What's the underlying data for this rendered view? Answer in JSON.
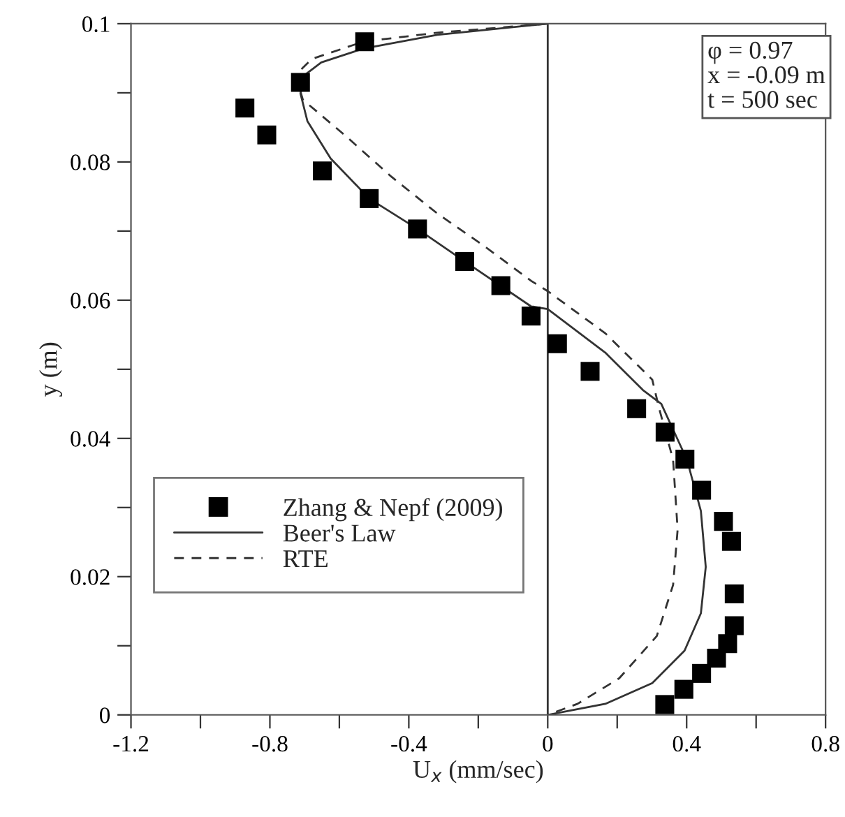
{
  "chart_data": {
    "type": "scatter",
    "xlabel": "U$_{x}$ (mm/sec)",
    "ylabel": "y (m)",
    "xlim": [
      -1.2,
      0.8
    ],
    "xticks": [
      -1.2,
      {
        "value": -1.0,
        "label": null
      },
      -0.8,
      {
        "value": -0.6,
        "label": null
      },
      -0.4,
      {
        "value": -0.2,
        "label": null
      },
      0,
      {
        "value": 0.2,
        "label": null
      },
      0.4,
      {
        "value": 0.6,
        "label": null
      },
      0.8
    ],
    "ylim": [
      0,
      0.1
    ],
    "yticks": [
      0,
      {
        "value": 0.01,
        "label": null
      },
      0.02,
      {
        "value": 0.03,
        "label": null
      },
      0.04,
      {
        "value": 0.05,
        "label": null
      },
      0.06,
      {
        "value": 0.07,
        "label": null
      },
      0.08,
      {
        "value": 0.09,
        "label": null
      },
      0.1
    ],
    "grid": false,
    "legend": "left",
    "annotations": [
      "φ = 0.97\nx = -0.09 m\nt = 500 sec"
    ],
    "ref_lines": [
      {
        "axis": "x",
        "value": 0,
        "label": null,
        "color": "#333333",
        "line_style": "solid"
      }
    ],
    "series": [
      {
        "name": "Zhang & Nepf (2009)",
        "marker": "square",
        "color": "#000000",
        "x": [
          -0.527,
          -0.712,
          -0.872,
          -0.809,
          -0.649,
          -0.514,
          -0.375,
          -0.239,
          -0.135,
          -0.048,
          0.028,
          0.122,
          0.256,
          0.338,
          0.395,
          0.443,
          0.506,
          0.529,
          0.537,
          0.537,
          0.518,
          0.486,
          0.443,
          0.392,
          0.337
        ],
        "values": [
          0.0974,
          0.0915,
          0.0878,
          0.0839,
          0.0787,
          0.0747,
          0.0703,
          0.0656,
          0.0621,
          0.0577,
          0.0537,
          0.0497,
          0.0443,
          0.0409,
          0.037,
          0.0325,
          0.028,
          0.0251,
          0.0175,
          0.0129,
          0.0103,
          0.0082,
          0.006,
          0.0037,
          0.0015
        ]
      },
      {
        "name": "Beer's Law",
        "type": "line",
        "line_style": "solid",
        "color": "#333333",
        "x": [
          0,
          -0.318,
          -0.531,
          -0.652,
          -0.699,
          -0.712,
          -0.692,
          -0.625,
          -0.514,
          -0.375,
          -0.239,
          -0.048,
          0,
          0.166,
          0.274,
          0.327,
          0.401,
          0.441,
          0.455,
          0.441,
          0.394,
          0.301,
          0.166,
          0
        ],
        "values": [
          0.1,
          0.0984,
          0.0964,
          0.0944,
          0.0926,
          0.0899,
          0.0859,
          0.0805,
          0.0747,
          0.0703,
          0.0656,
          0.0591,
          0.0587,
          0.0524,
          0.047,
          0.045,
          0.0369,
          0.0295,
          0.0214,
          0.0147,
          0.0093,
          0.0046,
          0.0016,
          0
        ]
      },
      {
        "name": "RTE",
        "type": "line",
        "line_style": "dashed",
        "color": "#333333",
        "x": [
          0,
          -0.318,
          -0.531,
          -0.679,
          -0.726,
          -0.705,
          -0.585,
          -0.451,
          -0.317,
          -0.182,
          -0.048,
          0,
          0.166,
          0.301,
          0.321,
          0.361,
          0.374,
          0.361,
          0.314,
          0.206,
          0.086,
          0
        ],
        "values": [
          0.1,
          0.0987,
          0.0974,
          0.0949,
          0.0926,
          0.089,
          0.0839,
          0.0779,
          0.0725,
          0.0678,
          0.0628,
          0.0613,
          0.0552,
          0.0485,
          0.0443,
          0.0369,
          0.0268,
          0.0188,
          0.0114,
          0.0053,
          0.0016,
          0
        ]
      }
    ]
  }
}
